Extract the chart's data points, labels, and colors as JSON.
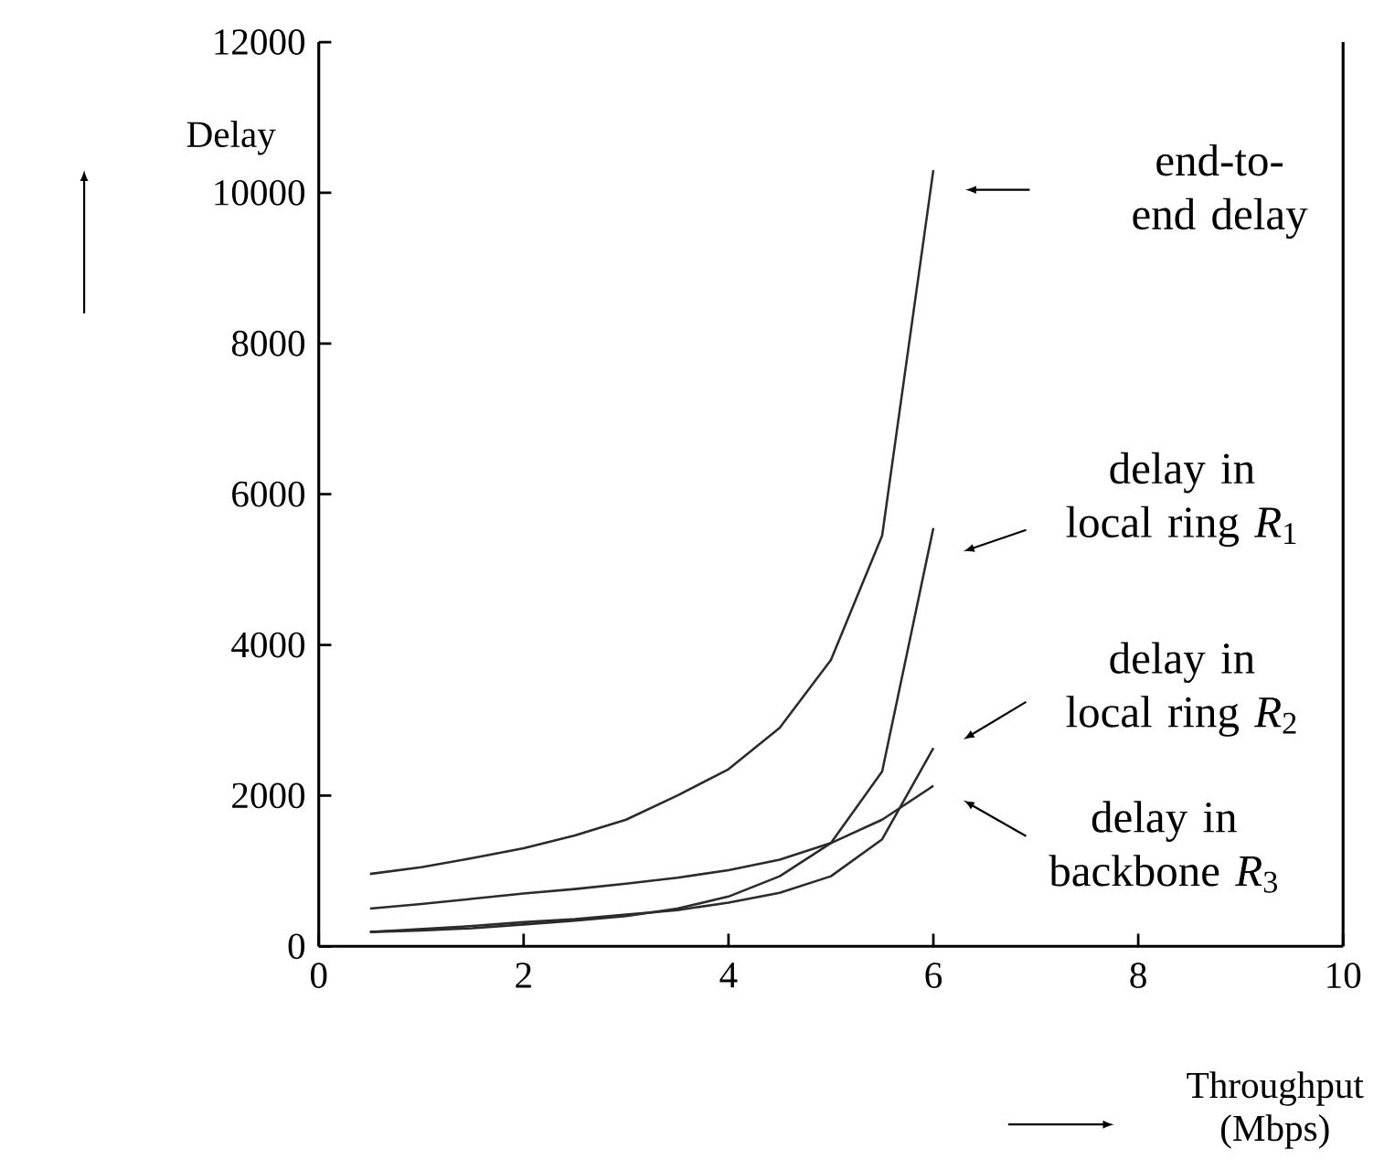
{
  "chart_data": {
    "type": "line",
    "xlabel": "Throughput (Mbps)",
    "ylabel": "Delay",
    "x": [
      0.5,
      1,
      1.5,
      2,
      2.5,
      3,
      3.5,
      4,
      4.5,
      5,
      5.5,
      6
    ],
    "series": [
      {
        "color": "#2b2b2b",
        "values": [
          960,
          1050,
          1170,
          1300,
          1470,
          1680,
          2000,
          2350,
          2900,
          3800,
          5450,
          10300
        ]
      },
      {
        "color": "#2b2b2b",
        "values": [
          190,
          210,
          240,
          290,
          340,
          400,
          500,
          660,
          930,
          1370,
          2320,
          5550
        ]
      },
      {
        "color": "#2b2b2b",
        "values": [
          190,
          230,
          270,
          320,
          360,
          420,
          480,
          580,
          710,
          930,
          1420,
          2630
        ]
      },
      {
        "color": "#2b2b2b",
        "values": [
          500,
          560,
          630,
          700,
          760,
          830,
          910,
          1010,
          1150,
          1370,
          1680,
          2130
        ]
      }
    ],
    "xlim": [
      0,
      10
    ],
    "ylim": [
      0,
      12000
    ],
    "xticks": [
      0,
      2,
      4,
      6,
      8,
      10
    ],
    "yticks": [
      0,
      2000,
      4000,
      6000,
      8000,
      10000,
      12000
    ],
    "annotations": [
      "end-to-end delay",
      "delay in local ring *R*$_{1}$",
      "delay in local ring *R*$_{2}$",
      "delay in backbone *R*$_{3}$"
    ]
  }
}
